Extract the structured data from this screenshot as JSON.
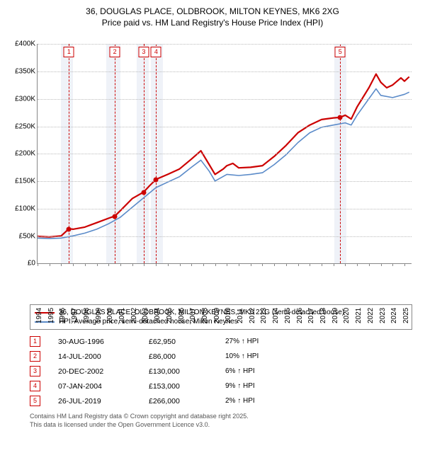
{
  "title_line1": "36, DOUGLAS PLACE, OLDBROOK, MILTON KEYNES, MK6 2XG",
  "title_line2": "Price paid vs. HM Land Registry's House Price Index (HPI)",
  "chart": {
    "type": "line",
    "x_range": [
      1994,
      2025.6
    ],
    "y_range": [
      0,
      400000
    ],
    "y_ticks": [
      0,
      50000,
      100000,
      150000,
      200000,
      250000,
      300000,
      350000,
      400000
    ],
    "y_tick_labels": [
      "£0",
      "£50K",
      "£100K",
      "£150K",
      "£200K",
      "£250K",
      "£300K",
      "£350K",
      "£400K"
    ],
    "x_ticks": [
      1994,
      1995,
      1996,
      1997,
      1998,
      1999,
      2000,
      2001,
      2002,
      2003,
      2004,
      2005,
      2006,
      2007,
      2008,
      2009,
      2010,
      2011,
      2012,
      2013,
      2014,
      2015,
      2016,
      2017,
      2018,
      2019,
      2020,
      2021,
      2022,
      2023,
      2024,
      2025
    ],
    "grid_color": "#bbbbbb",
    "axis_color": "#888888",
    "background_color": "#ffffff",
    "band_color": "rgba(120,150,200,0.12)",
    "bands": [
      [
        1996.0,
        1997.0
      ],
      [
        1999.8,
        2001.0
      ],
      [
        2002.4,
        2003.4
      ],
      [
        2003.6,
        2004.6
      ],
      [
        2019.1,
        2020.1
      ]
    ],
    "vlines_color": "#cc0000",
    "vlines_x": [
      1996.66,
      2000.53,
      2002.97,
      2004.02,
      2019.57
    ],
    "series": [
      {
        "id": "price_paid",
        "label": "36, DOUGLAS PLACE, OLDBROOK, MILTON KEYNES, MK6 2XG (semi-detached house)",
        "color": "#cc0000",
        "width": 2.2,
        "points": [
          [
            1994.0,
            49000
          ],
          [
            1995.0,
            48000
          ],
          [
            1996.0,
            50000
          ],
          [
            1996.66,
            62950
          ],
          [
            1997.0,
            62000
          ],
          [
            1998.0,
            66000
          ],
          [
            1999.0,
            74000
          ],
          [
            2000.0,
            82000
          ],
          [
            2000.53,
            86000
          ],
          [
            2001.0,
            96000
          ],
          [
            2002.0,
            118000
          ],
          [
            2002.97,
            130000
          ],
          [
            2003.5,
            142000
          ],
          [
            2004.02,
            153000
          ],
          [
            2005.0,
            162000
          ],
          [
            2006.0,
            172000
          ],
          [
            2007.0,
            190000
          ],
          [
            2007.8,
            205000
          ],
          [
            2008.5,
            180000
          ],
          [
            2009.0,
            162000
          ],
          [
            2009.7,
            172000
          ],
          [
            2010.0,
            178000
          ],
          [
            2010.5,
            182000
          ],
          [
            2011.0,
            174000
          ],
          [
            2012.0,
            175000
          ],
          [
            2013.0,
            178000
          ],
          [
            2014.0,
            195000
          ],
          [
            2015.0,
            215000
          ],
          [
            2016.0,
            238000
          ],
          [
            2017.0,
            252000
          ],
          [
            2018.0,
            262000
          ],
          [
            2019.0,
            265000
          ],
          [
            2019.57,
            266000
          ],
          [
            2020.0,
            270000
          ],
          [
            2020.5,
            263000
          ],
          [
            2021.0,
            285000
          ],
          [
            2022.0,
            320000
          ],
          [
            2022.6,
            345000
          ],
          [
            2023.0,
            330000
          ],
          [
            2023.5,
            320000
          ],
          [
            2024.0,
            325000
          ],
          [
            2024.7,
            338000
          ],
          [
            2025.0,
            332000
          ],
          [
            2025.4,
            340000
          ]
        ]
      },
      {
        "id": "hpi",
        "label": "HPI: Average price, semi-detached house, Milton Keynes",
        "color": "#5b8bc9",
        "width": 1.6,
        "points": [
          [
            1994.0,
            46000
          ],
          [
            1995.0,
            45000
          ],
          [
            1996.0,
            46000
          ],
          [
            1997.0,
            50000
          ],
          [
            1998.0,
            55000
          ],
          [
            1999.0,
            62000
          ],
          [
            2000.0,
            72000
          ],
          [
            2001.0,
            84000
          ],
          [
            2002.0,
            102000
          ],
          [
            2003.0,
            120000
          ],
          [
            2004.0,
            138000
          ],
          [
            2005.0,
            148000
          ],
          [
            2006.0,
            158000
          ],
          [
            2007.0,
            175000
          ],
          [
            2007.8,
            188000
          ],
          [
            2008.5,
            168000
          ],
          [
            2009.0,
            150000
          ],
          [
            2010.0,
            162000
          ],
          [
            2011.0,
            160000
          ],
          [
            2012.0,
            162000
          ],
          [
            2013.0,
            165000
          ],
          [
            2014.0,
            180000
          ],
          [
            2015.0,
            198000
          ],
          [
            2016.0,
            220000
          ],
          [
            2017.0,
            238000
          ],
          [
            2018.0,
            248000
          ],
          [
            2019.0,
            252000
          ],
          [
            2020.0,
            256000
          ],
          [
            2020.5,
            252000
          ],
          [
            2021.0,
            270000
          ],
          [
            2022.0,
            300000
          ],
          [
            2022.6,
            318000
          ],
          [
            2023.0,
            306000
          ],
          [
            2024.0,
            302000
          ],
          [
            2025.0,
            308000
          ],
          [
            2025.4,
            312000
          ]
        ]
      }
    ],
    "sale_markers": [
      {
        "n": "1",
        "x": 1996.66,
        "y": 62950
      },
      {
        "n": "2",
        "x": 2000.53,
        "y": 86000
      },
      {
        "n": "3",
        "x": 2002.97,
        "y": 130000
      },
      {
        "n": "4",
        "x": 2004.02,
        "y": 153000
      },
      {
        "n": "5",
        "x": 2019.57,
        "y": 266000
      }
    ],
    "marker_color": "#cc0000"
  },
  "legend": {
    "border_color": "#888888",
    "items": [
      {
        "color": "#cc0000",
        "label": "36, DOUGLAS PLACE, OLDBROOK, MILTON KEYNES, MK6 2XG (semi-detached house)"
      },
      {
        "color": "#5b8bc9",
        "label": "HPI: Average price, semi-detached house, Milton Keynes"
      }
    ]
  },
  "sales": [
    {
      "n": "1",
      "date": "30-AUG-1996",
      "price": "£62,950",
      "delta": "27% ↑ HPI"
    },
    {
      "n": "2",
      "date": "14-JUL-2000",
      "price": "£86,000",
      "delta": "10% ↑ HPI"
    },
    {
      "n": "3",
      "date": "20-DEC-2002",
      "price": "£130,000",
      "delta": "6% ↑ HPI"
    },
    {
      "n": "4",
      "date": "07-JAN-2004",
      "price": "£153,000",
      "delta": "9% ↑ HPI"
    },
    {
      "n": "5",
      "date": "26-JUL-2019",
      "price": "£266,000",
      "delta": "2% ↑ HPI"
    }
  ],
  "footer_line1": "Contains HM Land Registry data © Crown copyright and database right 2025.",
  "footer_line2": "This data is licensed under the Open Government Licence v3.0."
}
